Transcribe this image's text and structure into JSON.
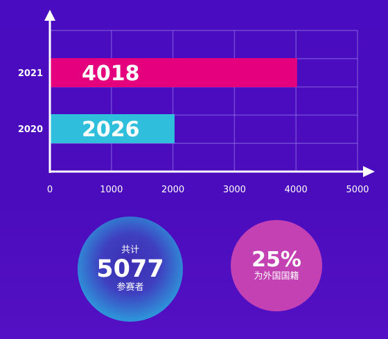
{
  "chart_data": {
    "type": "bar",
    "orientation": "horizontal",
    "categories": [
      "2021",
      "2020"
    ],
    "values": [
      4018,
      2026
    ],
    "data_labels": [
      "4018",
      "2026"
    ],
    "colors": [
      "#e5007e",
      "#2fbfdc"
    ],
    "xlim": [
      0,
      5000
    ],
    "xticks": [
      "0",
      "1000",
      "2000",
      "3000",
      "4000",
      "5000"
    ],
    "grid": true
  },
  "stats": {
    "total": {
      "label_top": "共计",
      "value": "5077",
      "label_bottom": "参赛者"
    },
    "foreign": {
      "value": "25%",
      "label": "为外国国籍"
    }
  }
}
